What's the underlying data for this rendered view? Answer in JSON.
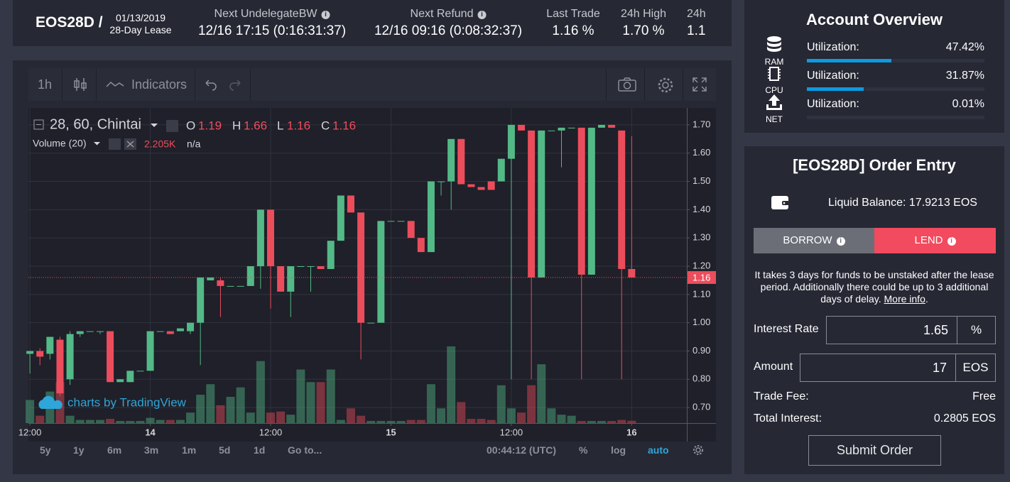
{
  "header": {
    "symbol": "EOS28D /",
    "date": "01/13/2019",
    "lease": "28-Day Lease",
    "stats": [
      {
        "label": "Next UndelegateBW",
        "value": "12/16 17:15 (0:16:31:37)"
      },
      {
        "label": "Next Refund",
        "value": "12/16 09:16 (0:08:32:37)"
      },
      {
        "label": "Last Trade",
        "value": "1.16 %"
      },
      {
        "label": "24h High",
        "value": "1.70 %"
      },
      {
        "label": "24h",
        "value": "1.1"
      }
    ]
  },
  "toolbar": {
    "interval": "1h",
    "indicators": "Indicators"
  },
  "chart_data": {
    "type": "candlestick",
    "legend": "28, 60, Chintai",
    "ohlc_labels": [
      "O",
      "H",
      "L",
      "C"
    ],
    "volume_label": "Volume (20)",
    "volume_value_label": "2.205K",
    "volume_change": "n/a",
    "watermark": "charts by TradingView",
    "up_color": "#53b987",
    "down_color": "#eb4d5c",
    "xlim": [
      -0.15,
      65.5
    ],
    "ylim": [
      0.645,
      1.76
    ],
    "volume_ylim": [
      0,
      300000
    ],
    "xticks": [
      {
        "value": 0,
        "label": "12:00"
      },
      {
        "value": 12,
        "label": "14"
      },
      {
        "value": 24,
        "label": "12:00"
      },
      {
        "value": 36,
        "label": "15"
      },
      {
        "value": 48,
        "label": "12:00"
      },
      {
        "value": 60,
        "label": "16"
      }
    ],
    "yticks": [
      {
        "value": 0.7,
        "label": "0.70"
      },
      {
        "value": 0.8,
        "label": "0.80"
      },
      {
        "value": 0.9,
        "label": "0.90"
      },
      {
        "value": 1.0,
        "label": "1.00"
      },
      {
        "value": 1.1,
        "label": "1.10"
      },
      {
        "value": 1.2,
        "label": "1.20"
      },
      {
        "value": 1.3,
        "label": "1.30"
      },
      {
        "value": 1.4,
        "label": "1.40"
      },
      {
        "value": 1.5,
        "label": "1.50"
      },
      {
        "value": 1.6,
        "label": "1.60"
      },
      {
        "value": 1.7,
        "label": "1.70"
      }
    ],
    "grid": true,
    "x": [
      0,
      1,
      2,
      3,
      4,
      5,
      6,
      7,
      8,
      9,
      10,
      11,
      12,
      13,
      14,
      15,
      16,
      17,
      18,
      19,
      20,
      21,
      22,
      23,
      24,
      25,
      26,
      27,
      28,
      29,
      30,
      31,
      32,
      33,
      34,
      35,
      36,
      37,
      38,
      39,
      40,
      41,
      42,
      43,
      44,
      45,
      46,
      47,
      48,
      49,
      50,
      51,
      52,
      53,
      54,
      55,
      56,
      57,
      58,
      59,
      60
    ],
    "open": [
      0.89,
      0.9,
      0.89,
      0.94,
      0.8,
      0.96,
      0.97,
      0.97,
      0.97,
      0.79,
      0.79,
      0.83,
      0.83,
      0.97,
      0.97,
      0.97,
      0.97,
      1.0,
      1.15,
      1.15,
      1.13,
      1.13,
      1.13,
      1.2,
      1.4,
      1.2,
      1.11,
      1.2,
      1.2,
      1.2,
      1.19,
      1.29,
      1.45,
      1.39,
      1.0,
      1.0,
      1.36,
      1.36,
      1.36,
      1.3,
      1.25,
      1.5,
      1.5,
      1.65,
      1.49,
      1.48,
      1.5,
      1.5,
      1.58,
      1.7,
      1.68,
      1.16,
      1.68,
      1.68,
      1.69,
      1.69,
      1.17,
      1.69,
      1.7,
      1.68,
      1.19
    ],
    "high": [
      0.9,
      0.91,
      0.95,
      0.95,
      0.97,
      0.97,
      0.97,
      0.97,
      0.97,
      0.8,
      0.83,
      0.83,
      0.97,
      0.97,
      0.97,
      0.98,
      1.0,
      1.16,
      1.16,
      1.16,
      1.13,
      1.13,
      1.2,
      1.4,
      1.4,
      1.2,
      1.2,
      1.2,
      1.2,
      1.2,
      1.29,
      1.45,
      1.45,
      1.39,
      1.0,
      1.36,
      1.36,
      1.36,
      1.36,
      1.3,
      1.5,
      1.5,
      1.65,
      1.65,
      1.49,
      1.48,
      1.5,
      1.58,
      1.7,
      1.7,
      1.68,
      1.68,
      1.68,
      1.69,
      1.69,
      1.69,
      1.69,
      1.7,
      1.7,
      1.68,
      1.66
    ],
    "low": [
      0.82,
      0.85,
      0.87,
      0.74,
      0.78,
      0.95,
      0.97,
      0.96,
      0.79,
      0.79,
      0.79,
      0.83,
      0.83,
      0.97,
      0.96,
      0.97,
      0.96,
      0.85,
      1.15,
      1.02,
      1.13,
      1.13,
      1.13,
      1.12,
      1.05,
      1.11,
      1.02,
      1.2,
      1.11,
      1.19,
      1.19,
      1.29,
      1.39,
      0.87,
      1.0,
      1.0,
      1.36,
      1.36,
      1.3,
      1.25,
      1.25,
      1.45,
      1.4,
      1.49,
      1.48,
      1.47,
      1.47,
      1.5,
      0.8,
      1.68,
      0.8,
      1.16,
      1.68,
      1.55,
      1.69,
      0.8,
      1.17,
      1.69,
      1.69,
      0.8,
      1.16
    ],
    "close": [
      0.9,
      0.88,
      0.95,
      0.75,
      0.96,
      0.97,
      0.97,
      0.97,
      0.79,
      0.8,
      0.83,
      0.83,
      0.97,
      0.97,
      0.96,
      0.98,
      1.0,
      1.16,
      1.16,
      1.13,
      1.13,
      1.13,
      1.2,
      1.4,
      1.2,
      1.11,
      1.2,
      1.2,
      1.2,
      1.19,
      1.29,
      1.45,
      1.39,
      1.0,
      1.0,
      1.36,
      1.36,
      1.36,
      1.3,
      1.25,
      1.5,
      1.5,
      1.65,
      1.49,
      1.48,
      1.47,
      1.47,
      1.58,
      1.7,
      1.68,
      1.16,
      1.68,
      1.68,
      1.69,
      1.69,
      1.17,
      1.69,
      1.7,
      1.69,
      1.19,
      1.16
    ],
    "volume": [
      22000,
      7000,
      30000,
      39000,
      7000,
      3000,
      3000,
      3000,
      4000,
      2000,
      2000,
      2000,
      5000,
      3000,
      3000,
      3000,
      10000,
      27000,
      37000,
      17000,
      25000,
      34000,
      10000,
      59000,
      10000,
      11000,
      8000,
      51000,
      39000,
      39000,
      51000,
      3000,
      14000,
      7000,
      2000,
      2000,
      2000,
      2000,
      3000,
      3000,
      37000,
      14000,
      73000,
      20000,
      4000,
      4000,
      3000,
      36000,
      14000,
      10000,
      36000,
      56000,
      14000,
      8000,
      7000,
      2000,
      2000,
      2000,
      2000,
      3000,
      2205
    ]
  },
  "range_bar": {
    "ranges": [
      "5y",
      "1y",
      "6m",
      "3m",
      "1m",
      "5d",
      "1d"
    ],
    "goto": "Go to...",
    "clock": "00:44:12 (UTC)",
    "percent": "%",
    "log": "log",
    "auto": "auto"
  },
  "account": {
    "title": "Account Overview",
    "resources": [
      {
        "icon_label": "RAM",
        "label": "Utilization:"
      },
      {
        "icon_label": "CPU",
        "label": "Utilization:"
      },
      {
        "icon_label": "NET",
        "label": "Utilization:"
      }
    ],
    "values": [
      47.42,
      31.87,
      0.01
    ],
    "value_labels": [
      "47.42%",
      "31.87%",
      "0.01%"
    ]
  },
  "order": {
    "title": "[EOS28D] Order Entry",
    "balance": "Liquid Balance: 17.9213 EOS",
    "tabs": [
      "BORROW",
      "LEND"
    ],
    "note": "It takes 3 days for funds to be unstaked after the lease period. Additionally there could be up to 3 additional days of delay. ",
    "note_link": "More info",
    "note_end": ".",
    "interest_label": "Interest Rate",
    "interest_value": 1.65,
    "interest_unit": "%",
    "amount_label": "Amount",
    "amount_value": 17,
    "amount_unit": "EOS",
    "fee_label": "Trade Fee:",
    "fee_value": "Free",
    "total_label": "Total Interest:",
    "total_value": "0.2805 EOS",
    "submit": "Submit Order"
  }
}
